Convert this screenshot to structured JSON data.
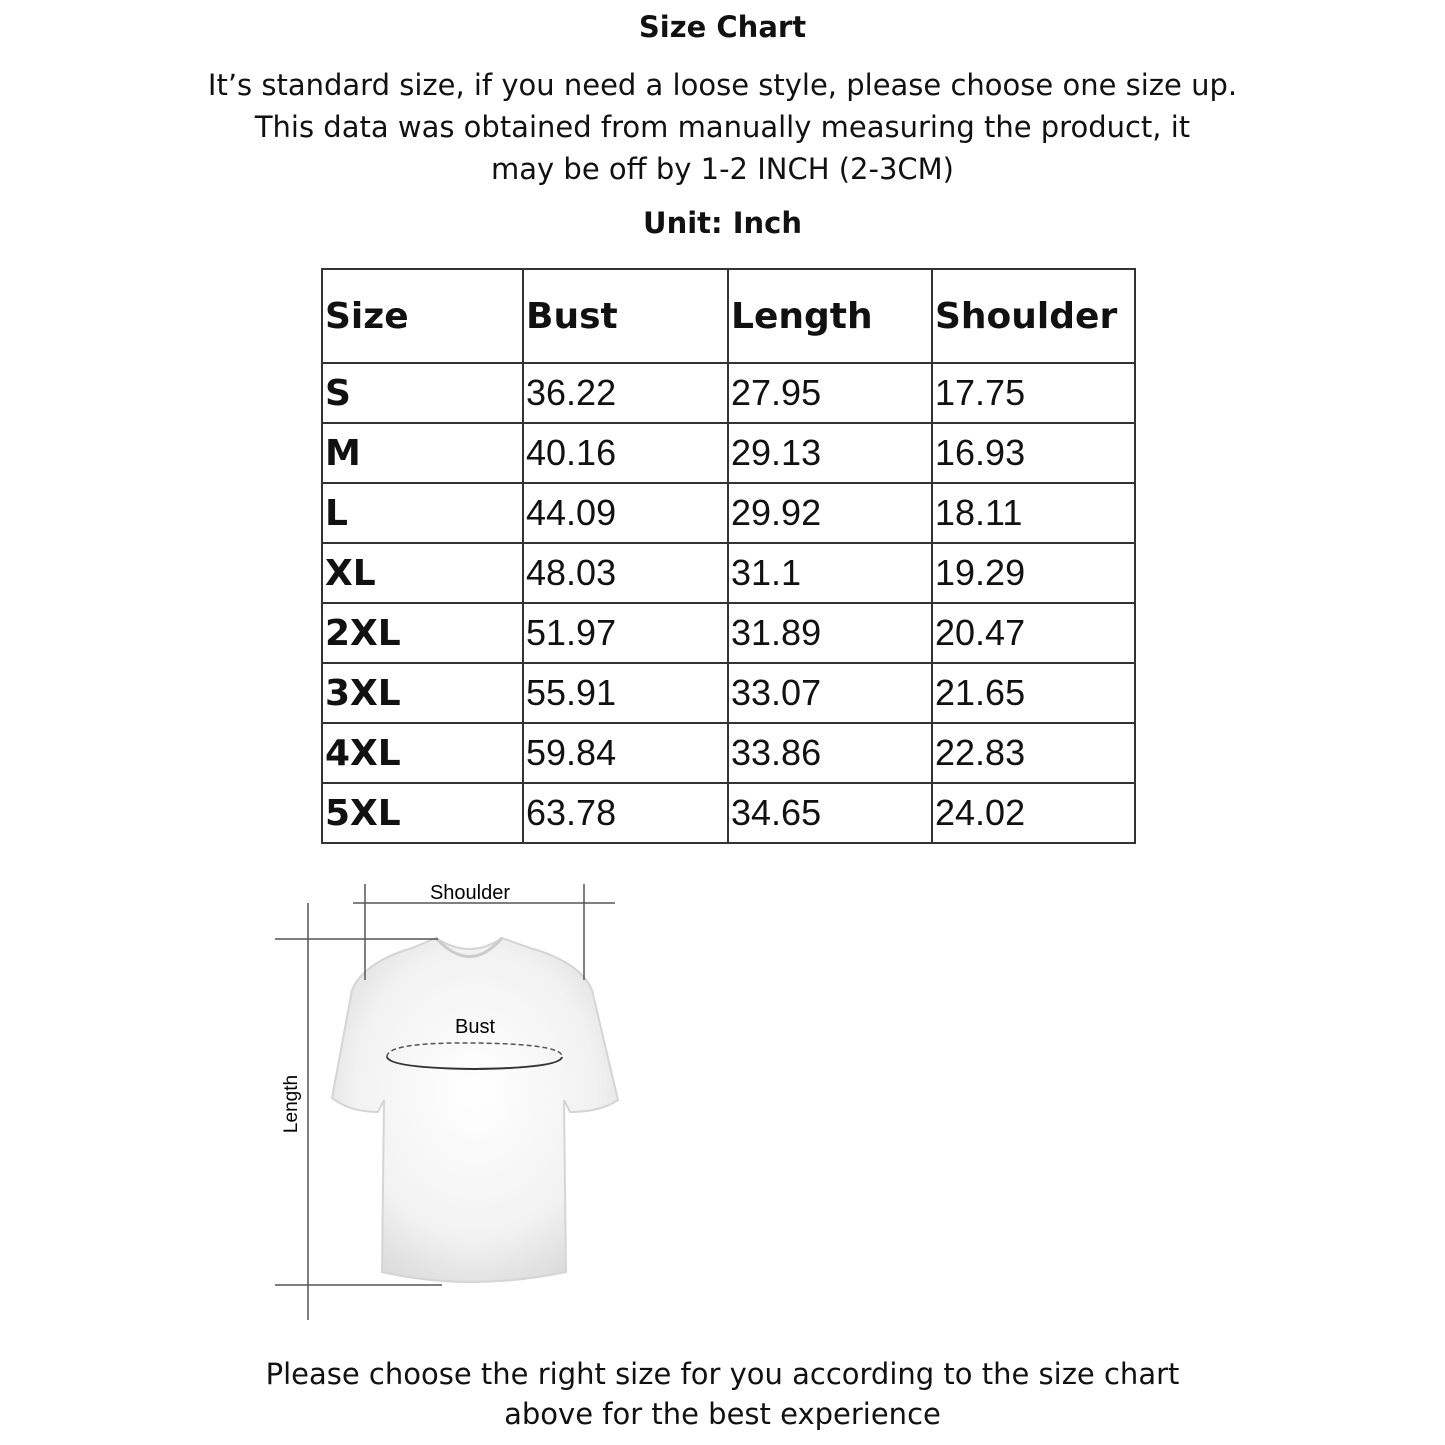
{
  "title": "Size Chart",
  "intro": [
    "It’s standard size, if you need a loose style, please choose one size up.",
    "This data was obtained from manually measuring the product, it",
    "may be off by 1-2 INCH (2-3CM)"
  ],
  "unit": "Unit: Inch",
  "table": {
    "headers": [
      "Size",
      "Bust",
      "Length",
      "Shoulder"
    ],
    "rows": [
      [
        "S",
        "36.22",
        "27.95",
        "17.75"
      ],
      [
        "M",
        "40.16",
        "29.13",
        "16.93"
      ],
      [
        "L",
        "44.09",
        "29.92",
        "18.11"
      ],
      [
        "XL",
        "48.03",
        "31.1",
        "19.29"
      ],
      [
        "2XL",
        "51.97",
        "31.89",
        "20.47"
      ],
      [
        "3XL",
        "55.91",
        "33.07",
        "21.65"
      ],
      [
        "4XL",
        "59.84",
        "33.86",
        "22.83"
      ],
      [
        "5XL",
        "63.78",
        "34.65",
        "24.02"
      ]
    ]
  },
  "diagram": {
    "shoulder_label": "Shoulder",
    "bust_label": "Bust",
    "length_label": "Length"
  },
  "footer": [
    "Please choose the right size for you according to the size chart",
    "above for the best experience"
  ]
}
